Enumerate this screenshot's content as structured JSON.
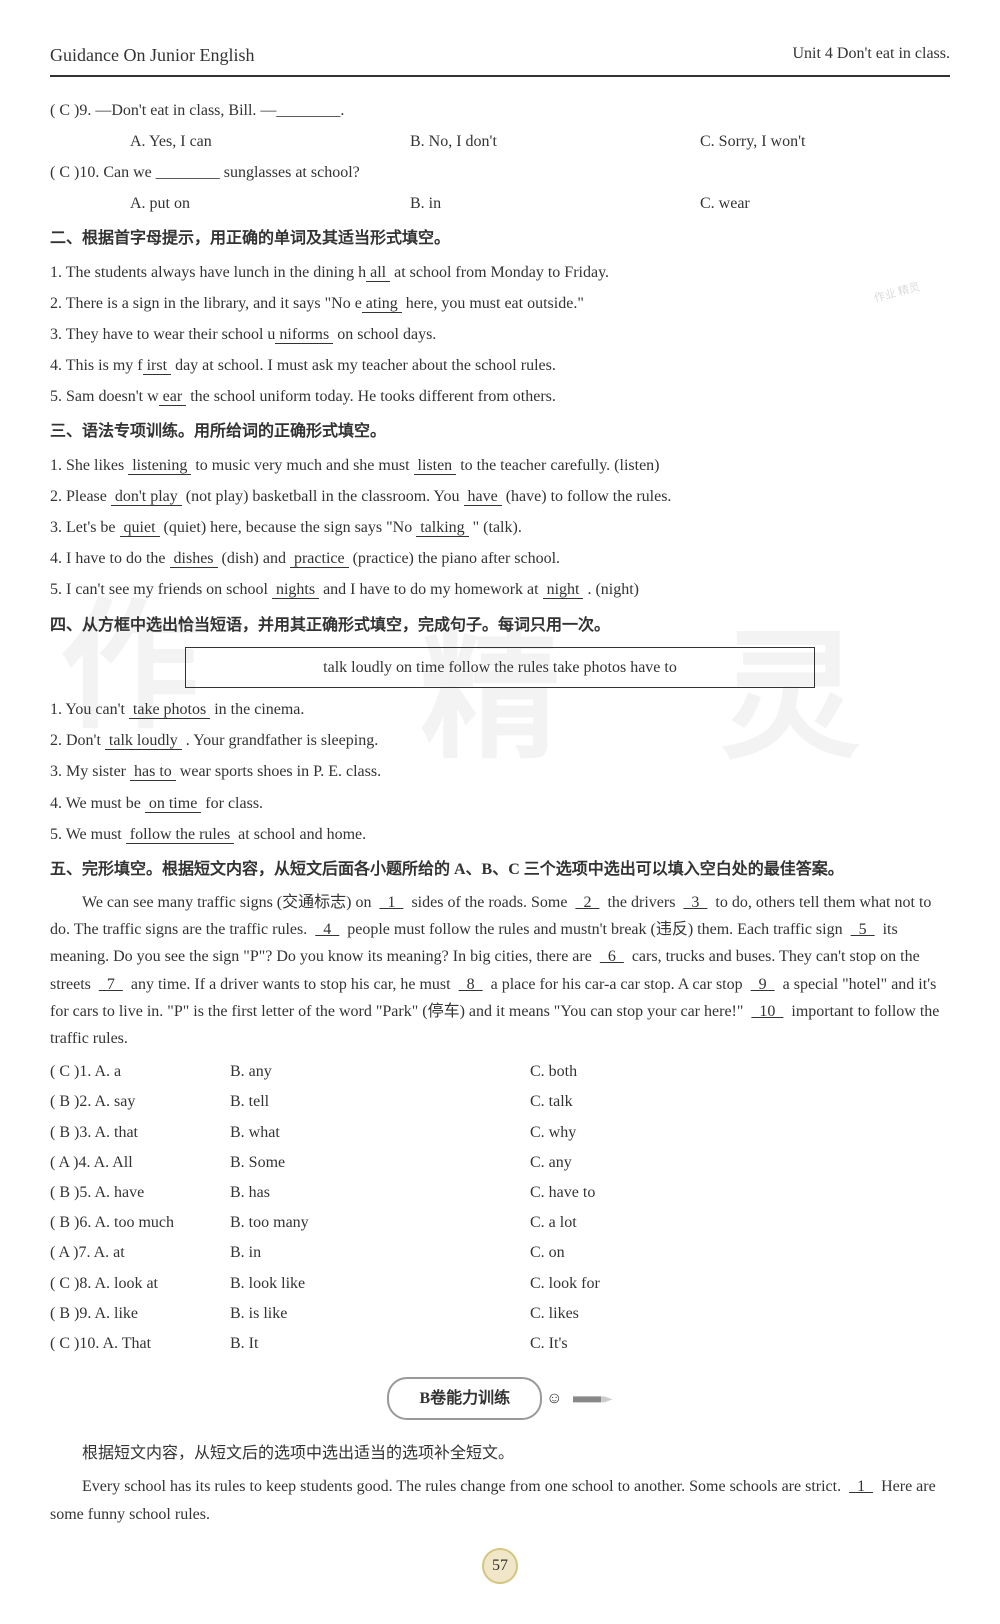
{
  "header": {
    "left": "Guidance On Junior English",
    "right": "Unit 4   Don't eat in class."
  },
  "q9": {
    "stem": "(   C   )9. —Don't eat in class, Bill. —________.",
    "a": "A. Yes, I can",
    "b": "B. No, I don't",
    "c": "C. Sorry, I won't"
  },
  "q10": {
    "stem": "(   C   )10. Can we ________ sunglasses at school?",
    "a": "A. put on",
    "b": "B. in",
    "c": "C. wear"
  },
  "sec2Heading": "二、根据首字母提示，用正确的单词及其适当形式填空。",
  "sec2": {
    "l1a": "1. The students always have lunch in the dining h",
    "l1u": "all",
    "l1b": " at school from Monday to Friday.",
    "l2a": "2. There is a sign in the library, and it says \"No e",
    "l2u": "ating",
    "l2b": " here, you must eat outside.\"",
    "l3a": "3. They have to wear their school u",
    "l3u": "niforms",
    "l3b": " on school days.",
    "l4a": "4. This is my f",
    "l4u": "irst",
    "l4b": " day at school. I must ask my teacher about the school rules.",
    "l5a": "5. Sam doesn't w",
    "l5u": "ear",
    "l5b": " the school uniform today. He tooks different from others."
  },
  "sec3Heading": "三、语法专项训练。用所给词的正确形式填空。",
  "sec3": {
    "l1a": "1. She likes ",
    "l1u1": "listening",
    "l1b": " to music very much and she must ",
    "l1u2": "listen",
    "l1c": " to the teacher carefully. (listen)",
    "l2a": "2. Please ",
    "l2u1": "don't play",
    "l2b": " (not play) basketball in the classroom. You ",
    "l2u2": "have",
    "l2c": " (have) to follow the rules.",
    "l3a": "3. Let's be ",
    "l3u1": "quiet",
    "l3b": " (quiet) here, because the sign says \"No ",
    "l3u2": "talking",
    "l3c": " \" (talk).",
    "l4a": "4. I have to do the ",
    "l4u1": "dishes",
    "l4b": " (dish) and ",
    "l4u2": "practice",
    "l4c": " (practice) the piano after school.",
    "l5a": "5. I can't see my friends on school ",
    "l5u1": "nights",
    "l5b": " and I have to do my homework at ",
    "l5u2": "night",
    "l5c": " . (night)"
  },
  "sec4Heading": "四、从方框中选出恰当短语，并用其正确形式填空，完成句子。每词只用一次。",
  "box": "talk loudly    on time    follow the rules    take photos    have to",
  "sec4": {
    "l1a": "1. You can't ",
    "l1u": "take photos",
    "l1b": " in the cinema.",
    "l2a": "2. Don't ",
    "l2u": "talk loudly",
    "l2b": " . Your grandfather is sleeping.",
    "l3a": "3. My sister ",
    "l3u": "has to",
    "l3b": " wear sports shoes in P. E. class.",
    "l4a": "4. We must be ",
    "l4u": "on time",
    "l4b": " for class.",
    "l5a": "5. We must ",
    "l5u": "follow the rules",
    "l5b": " at school and home."
  },
  "sec5Heading": "五、完形填空。根据短文内容，从短文后面各小题所给的 A、B、C 三个选项中选出可以填入空白处的最佳答案。",
  "passage1": "We can see many traffic signs (交通标志) on    1    sides of the roads. Some    2    the drivers    3    to do, others tell them what not to do. The traffic signs are the traffic rules.    4    people must follow the rules and mustn't break (违反) them. Each traffic sign    5    its meaning. Do you see the sign \"P\"? Do you know its meaning? In big cities, there are    6    cars, trucks and buses. They can't stop on the streets    7    any time. If a driver wants to stop his car, he must    8    a place for his car-a car stop. A car stop    9    a special \"hotel\" and it's for cars to live in. \"P\" is the first letter of the word \"Park\" (停车) and it means \"You can stop your car here!\"    10    important to follow the traffic rules.",
  "cloze": [
    {
      "ans": "C",
      "n": "1",
      "a": "A. a",
      "b": "B. any",
      "c": "C. both"
    },
    {
      "ans": "B",
      "n": "2",
      "a": "A. say",
      "b": "B. tell",
      "c": "C. talk"
    },
    {
      "ans": "B",
      "n": "3",
      "a": "A. that",
      "b": "B. what",
      "c": "C. why"
    },
    {
      "ans": "A",
      "n": "4",
      "a": "A. All",
      "b": "B. Some",
      "c": "C. any"
    },
    {
      "ans": "B",
      "n": "5",
      "a": "A. have",
      "b": "B. has",
      "c": "C. have to"
    },
    {
      "ans": "B",
      "n": "6",
      "a": "A. too much",
      "b": "B. too many",
      "c": "C. a lot"
    },
    {
      "ans": "A",
      "n": "7",
      "a": "A. at",
      "b": "B. in",
      "c": "C. on"
    },
    {
      "ans": "C",
      "n": "8",
      "a": "A. look at",
      "b": "B. look like",
      "c": "C. look for"
    },
    {
      "ans": "B",
      "n": "9",
      "a": "A. like",
      "b": "B. is like",
      "c": "C. likes"
    },
    {
      "ans": "C",
      "n": "10",
      "a": "A. That",
      "b": "B. It",
      "c": "C. It's"
    }
  ],
  "sectionBLabel": "B卷能力训练",
  "sec6Heading": "根据短文内容，从短文后的选项中选出适当的选项补全短文。",
  "passage2": "Every school has its rules to keep students good. The rules change from one school to another. Some schools are strict.    1    Here are some funny school rules.",
  "pageNum": "57"
}
